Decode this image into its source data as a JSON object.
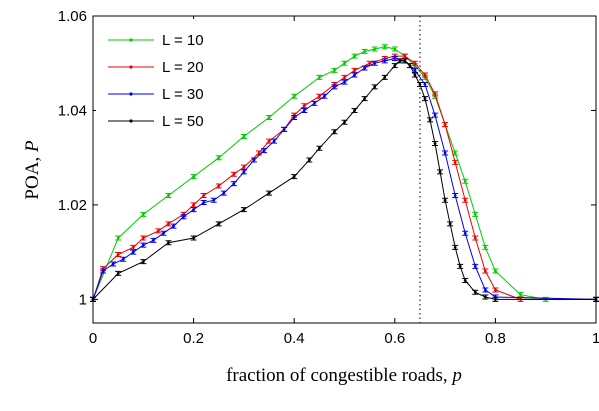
{
  "chart_data": {
    "type": "line",
    "xlabel_prefix": "fraction of congestible roads, ",
    "xlabel_var": "p",
    "ylabel_prefix": "POA, ",
    "ylabel_var": "P",
    "xlim": [
      0,
      1
    ],
    "ylim": [
      0.995,
      1.06
    ],
    "xticks": [
      0,
      0.2,
      0.4,
      0.6,
      0.8,
      1
    ],
    "xtick_labels": [
      "0",
      "0.2",
      "0.4",
      "0.6",
      "0.8",
      "1"
    ],
    "yticks": [
      1,
      1.02,
      1.04,
      1.06
    ],
    "ytick_labels": [
      "1",
      "1.02",
      "1.04",
      "1.06"
    ],
    "vline_x": 0.65,
    "legend_position": "top-left",
    "grid": false,
    "series": [
      {
        "name": "L = 10",
        "color": "#00cc00",
        "x": [
          0,
          0.05,
          0.1,
          0.15,
          0.2,
          0.25,
          0.3,
          0.35,
          0.4,
          0.45,
          0.48,
          0.5,
          0.52,
          0.54,
          0.56,
          0.58,
          0.6,
          0.62,
          0.64,
          0.66,
          0.68,
          0.7,
          0.72,
          0.74,
          0.76,
          0.78,
          0.8,
          0.85,
          0.9,
          1.0
        ],
        "y": [
          1.0,
          1.013,
          1.018,
          1.022,
          1.026,
          1.03,
          1.0345,
          1.0385,
          1.043,
          1.047,
          1.0485,
          1.05,
          1.0515,
          1.0525,
          1.053,
          1.0535,
          1.053,
          1.0515,
          1.0495,
          1.047,
          1.043,
          1.037,
          1.031,
          1.025,
          1.018,
          1.011,
          1.006,
          1.001,
          1.0,
          1.0
        ]
      },
      {
        "name": "L = 20",
        "color": "#ee0000",
        "x": [
          0,
          0.02,
          0.05,
          0.08,
          0.1,
          0.13,
          0.15,
          0.18,
          0.2,
          0.22,
          0.25,
          0.28,
          0.3,
          0.33,
          0.35,
          0.38,
          0.4,
          0.42,
          0.45,
          0.48,
          0.5,
          0.52,
          0.55,
          0.58,
          0.6,
          0.62,
          0.64,
          0.66,
          0.68,
          0.7,
          0.72,
          0.74,
          0.76,
          0.78,
          0.8,
          0.85,
          1.0
        ],
        "y": [
          1.0,
          1.0065,
          1.0095,
          1.011,
          1.013,
          1.0145,
          1.016,
          1.018,
          1.02,
          1.022,
          1.024,
          1.0265,
          1.028,
          1.031,
          1.0335,
          1.036,
          1.039,
          1.041,
          1.043,
          1.0455,
          1.047,
          1.0485,
          1.05,
          1.051,
          1.0515,
          1.0515,
          1.05,
          1.0475,
          1.0435,
          1.037,
          1.029,
          1.021,
          1.013,
          1.006,
          1.002,
          1.0,
          1.0
        ]
      },
      {
        "name": "L = 30",
        "color": "#0000ee",
        "x": [
          0,
          0.02,
          0.04,
          0.06,
          0.08,
          0.1,
          0.12,
          0.14,
          0.16,
          0.18,
          0.2,
          0.22,
          0.24,
          0.26,
          0.28,
          0.3,
          0.32,
          0.34,
          0.36,
          0.38,
          0.4,
          0.42,
          0.44,
          0.46,
          0.48,
          0.5,
          0.52,
          0.54,
          0.56,
          0.58,
          0.6,
          0.62,
          0.64,
          0.66,
          0.68,
          0.7,
          0.72,
          0.74,
          0.76,
          0.78,
          0.8,
          1.0
        ],
        "y": [
          1.0,
          1.006,
          1.0075,
          1.0085,
          1.01,
          1.0115,
          1.0125,
          1.014,
          1.0155,
          1.0175,
          1.019,
          1.0205,
          1.021,
          1.0225,
          1.0245,
          1.027,
          1.0295,
          1.0315,
          1.0335,
          1.036,
          1.0385,
          1.04,
          1.0415,
          1.043,
          1.045,
          1.046,
          1.0475,
          1.049,
          1.05,
          1.0505,
          1.051,
          1.0505,
          1.0485,
          1.0455,
          1.039,
          1.031,
          1.022,
          1.014,
          1.007,
          1.002,
          1.0005,
          1.0
        ]
      },
      {
        "name": "L = 50",
        "color": "#000000",
        "x": [
          0,
          0.05,
          0.1,
          0.15,
          0.2,
          0.25,
          0.3,
          0.35,
          0.4,
          0.43,
          0.45,
          0.48,
          0.5,
          0.52,
          0.54,
          0.56,
          0.58,
          0.6,
          0.61,
          0.62,
          0.63,
          0.64,
          0.65,
          0.66,
          0.67,
          0.68,
          0.69,
          0.7,
          0.71,
          0.72,
          0.73,
          0.74,
          0.76,
          0.78,
          0.8,
          1.0
        ],
        "y": [
          1.0,
          1.0055,
          1.008,
          1.012,
          1.013,
          1.016,
          1.019,
          1.0225,
          1.026,
          1.0295,
          1.032,
          1.0355,
          1.0375,
          1.04,
          1.0425,
          1.045,
          1.047,
          1.0495,
          1.0505,
          1.0505,
          1.0495,
          1.0475,
          1.0455,
          1.0425,
          1.038,
          1.033,
          1.027,
          1.021,
          1.016,
          1.011,
          1.007,
          1.004,
          1.0015,
          1.0005,
          1.0,
          1.0
        ]
      }
    ]
  }
}
